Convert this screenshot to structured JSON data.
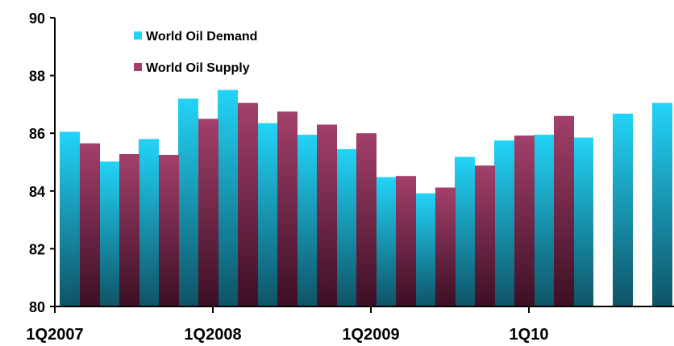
{
  "chart_data": {
    "type": "bar",
    "x_labels": [
      "1Q2007",
      "1Q2008",
      "1Q2009",
      "1Q10"
    ],
    "quarters": [
      "1Q2007",
      "2Q2007",
      "3Q2007",
      "4Q2007",
      "1Q2008",
      "2Q2008",
      "3Q2008",
      "4Q2008",
      "1Q2009",
      "2Q2009",
      "3Q2009",
      "4Q2009",
      "1Q2010",
      "2Q2010",
      "3Q2010",
      "4Q2010"
    ],
    "series": [
      {
        "name": "World Oil Demand",
        "values": [
          86.05,
          85.02,
          85.8,
          87.2,
          87.5,
          86.35,
          85.95,
          85.45,
          84.48,
          83.92,
          85.18,
          85.75,
          85.95,
          85.85,
          86.68,
          87.05
        ]
      },
      {
        "name": "World Oil Supply",
        "values": [
          85.65,
          85.28,
          85.25,
          86.5,
          87.05,
          86.75,
          86.3,
          86.0,
          84.52,
          84.12,
          84.88,
          85.92,
          86.6,
          null,
          null,
          null
        ]
      }
    ],
    "ylim": [
      80,
      90
    ],
    "yticks": [
      80,
      82,
      84,
      86,
      88,
      90
    ],
    "legend_position": "top-left",
    "title": "",
    "xlabel": "",
    "ylabel": ""
  },
  "colors": {
    "demand_light": "#22d4f7",
    "demand_dark": "#0e5366",
    "supply_light": "#a3406b",
    "supply_dark": "#3c0f24",
    "axis": "#000000"
  }
}
